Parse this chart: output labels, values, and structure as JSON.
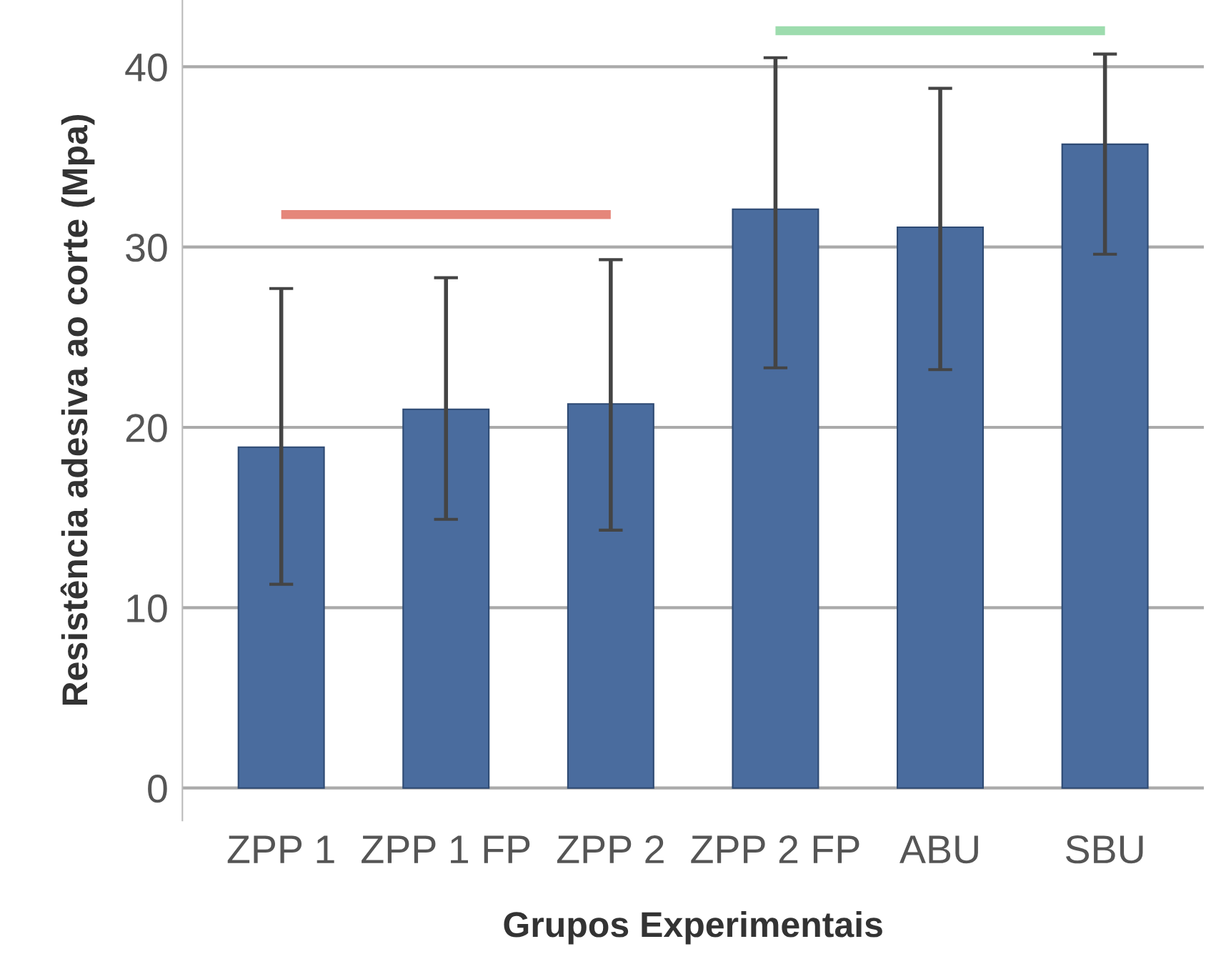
{
  "chart_data": {
    "type": "bar",
    "xlabel": "Grupos Experimentais",
    "ylabel": "Resistência adesiva ao corte (Mpa)",
    "categories": [
      "ZPP 1",
      "ZPP 1 FP",
      "ZPP 2",
      "ZPP 2 FP",
      "ABU",
      "SBU"
    ],
    "series": [
      {
        "color": "#4a6c9e",
        "values": [
          18.9,
          21.0,
          21.3,
          32.1,
          31.1,
          35.7
        ],
        "errors": [
          [
            11.3,
            27.7
          ],
          [
            14.9,
            28.3
          ],
          [
            14.3,
            29.3
          ],
          [
            23.3,
            40.5
          ],
          [
            23.2,
            38.8
          ],
          [
            29.6,
            40.7
          ]
        ]
      },
      {
        "type": "line",
        "color": "#e5867a",
        "x": [
          "ZPP 1",
          "ZPP 2"
        ],
        "values": [
          31.8,
          31.8
        ]
      },
      {
        "type": "line",
        "color": "#9ddcae",
        "x": [
          "ZPP 2 FP",
          "SBU"
        ],
        "values": [
          42.0,
          42.0
        ]
      }
    ],
    "ylim": [
      -1.8,
      43.7
    ],
    "yticks": [
      0,
      10,
      20,
      30,
      40
    ],
    "grid": "y"
  }
}
